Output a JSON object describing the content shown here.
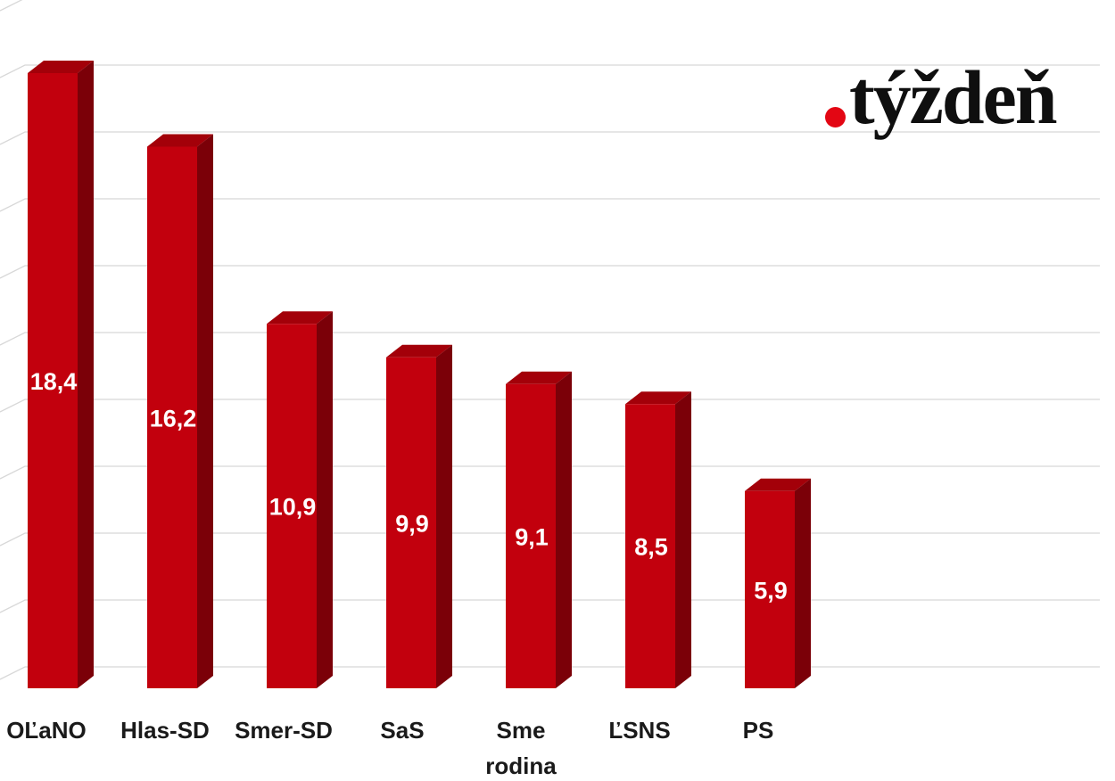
{
  "logo": {
    "text": "týždeň",
    "dot_color": "#e30613",
    "text_color": "#0f0f0f"
  },
  "chart_data": {
    "type": "bar",
    "style": "3d-column",
    "title": "",
    "xlabel": "",
    "ylabel": "",
    "categories": [
      "OĽaNO",
      "Hlas-SD",
      "Smer-SD",
      "SaS",
      "Sme rodina",
      "ĽSNS",
      "PS"
    ],
    "values": [
      18.4,
      16.2,
      10.9,
      9.9,
      9.1,
      8.5,
      5.9
    ],
    "value_labels": [
      "18,4",
      "16,2",
      "10,9",
      "9,9",
      "9,1",
      "8,5",
      "5,9"
    ],
    "ylim": [
      0,
      20
    ],
    "gridline_step": 2,
    "grid": true,
    "legend": "none",
    "colors": {
      "bar_front": "#c2000d",
      "bar_top": "#a30009",
      "bar_side": "#7b0008",
      "gridline": "#d8d8d8",
      "value_label": "#ffffff",
      "category_label": "#1a1a1a"
    }
  }
}
